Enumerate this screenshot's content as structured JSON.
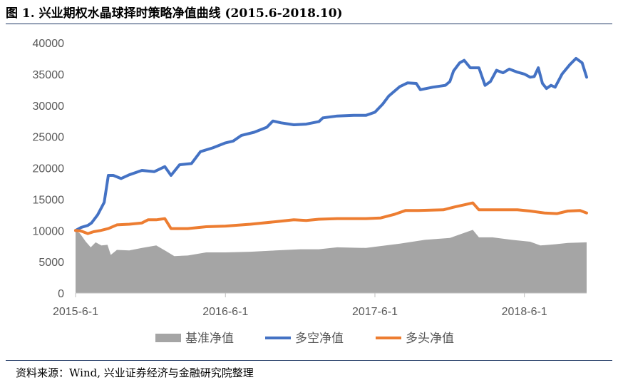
{
  "header": {
    "figure_title": "图 1. 兴业期权水晶球择时策略净值曲线 (2015.6-2018.10)"
  },
  "footer": {
    "source": "资料来源：Wind, 兴业证券经济与金融研究院整理"
  },
  "colors": {
    "benchmark": "#a5a5a5",
    "long_short": "#4472c4",
    "long_only": "#ed7d31",
    "axis": "#bfbfbf",
    "text": "#595959"
  },
  "chart_data": {
    "type": "line",
    "legend_position": "bottom",
    "grid": false,
    "ylim": [
      0,
      40000
    ],
    "yticks": [
      "0",
      "5000",
      "10000",
      "15000",
      "20000",
      "25000",
      "30000",
      "35000",
      "40000"
    ],
    "xticks": [
      "2015-6-1",
      "2016-6-1",
      "2017-6-1",
      "2018-6-1"
    ],
    "xlim": [
      "2015-6-1",
      "2018-10-31"
    ],
    "series": [
      {
        "name": "基准净值",
        "style": "area",
        "points": [
          [
            "2015-06-01",
            10000
          ],
          [
            "2015-06-12",
            9500
          ],
          [
            "2015-06-26",
            8200
          ],
          [
            "2015-07-08",
            7300
          ],
          [
            "2015-07-20",
            8100
          ],
          [
            "2015-08-03",
            7600
          ],
          [
            "2015-08-18",
            7700
          ],
          [
            "2015-08-26",
            6100
          ],
          [
            "2015-09-10",
            6900
          ],
          [
            "2015-10-10",
            6800
          ],
          [
            "2015-11-10",
            7200
          ],
          [
            "2015-12-15",
            7600
          ],
          [
            "2016-01-08",
            6700
          ],
          [
            "2016-01-28",
            5900
          ],
          [
            "2016-03-01",
            6000
          ],
          [
            "2016-04-15",
            6500
          ],
          [
            "2016-06-01",
            6500
          ],
          [
            "2016-08-01",
            6600
          ],
          [
            "2016-10-01",
            6800
          ],
          [
            "2016-12-01",
            7000
          ],
          [
            "2017-01-15",
            7000
          ],
          [
            "2017-03-01",
            7300
          ],
          [
            "2017-05-10",
            7200
          ],
          [
            "2017-06-01",
            7400
          ],
          [
            "2017-08-01",
            7900
          ],
          [
            "2017-10-01",
            8500
          ],
          [
            "2017-12-01",
            8800
          ],
          [
            "2018-01-26",
            10100
          ],
          [
            "2018-02-10",
            8900
          ],
          [
            "2018-03-15",
            8900
          ],
          [
            "2018-05-01",
            8500
          ],
          [
            "2018-06-15",
            8200
          ],
          [
            "2018-07-10",
            7600
          ],
          [
            "2018-08-15",
            7800
          ],
          [
            "2018-09-15",
            8000
          ],
          [
            "2018-10-31",
            8100
          ]
        ]
      },
      {
        "name": "多空净值",
        "style": "line",
        "points": [
          [
            "2015-06-01",
            10000
          ],
          [
            "2015-06-15",
            10500
          ],
          [
            "2015-07-01",
            10800
          ],
          [
            "2015-07-10",
            11200
          ],
          [
            "2015-07-25",
            12500
          ],
          [
            "2015-08-10",
            14500
          ],
          [
            "2015-08-20",
            18800
          ],
          [
            "2015-09-01",
            18800
          ],
          [
            "2015-09-20",
            18300
          ],
          [
            "2015-10-10",
            18900
          ],
          [
            "2015-11-10",
            19600
          ],
          [
            "2015-12-10",
            19400
          ],
          [
            "2016-01-05",
            20200
          ],
          [
            "2016-01-20",
            18800
          ],
          [
            "2016-02-10",
            20500
          ],
          [
            "2016-03-10",
            20700
          ],
          [
            "2016-04-01",
            22600
          ],
          [
            "2016-05-01",
            23200
          ],
          [
            "2016-06-01",
            24000
          ],
          [
            "2016-06-20",
            24300
          ],
          [
            "2016-07-10",
            25200
          ],
          [
            "2016-08-10",
            25700
          ],
          [
            "2016-09-10",
            26500
          ],
          [
            "2016-09-25",
            27500
          ],
          [
            "2016-10-15",
            27200
          ],
          [
            "2016-11-15",
            26900
          ],
          [
            "2016-12-15",
            27000
          ],
          [
            "2017-01-15",
            27400
          ],
          [
            "2017-01-25",
            28000
          ],
          [
            "2017-03-01",
            28300
          ],
          [
            "2017-04-10",
            28400
          ],
          [
            "2017-05-10",
            28400
          ],
          [
            "2017-06-01",
            28900
          ],
          [
            "2017-06-20",
            30200
          ],
          [
            "2017-07-05",
            31500
          ],
          [
            "2017-08-01",
            33000
          ],
          [
            "2017-08-20",
            33600
          ],
          [
            "2017-09-10",
            33500
          ],
          [
            "2017-09-20",
            32500
          ],
          [
            "2017-10-20",
            32900
          ],
          [
            "2017-11-20",
            33200
          ],
          [
            "2017-12-01",
            33800
          ],
          [
            "2017-12-10",
            35500
          ],
          [
            "2017-12-25",
            36800
          ],
          [
            "2018-01-05",
            37200
          ],
          [
            "2018-01-20",
            36000
          ],
          [
            "2018-02-10",
            36000
          ],
          [
            "2018-02-25",
            33200
          ],
          [
            "2018-03-10",
            33800
          ],
          [
            "2018-03-25",
            35600
          ],
          [
            "2018-04-10",
            35200
          ],
          [
            "2018-04-25",
            35800
          ],
          [
            "2018-05-15",
            35300
          ],
          [
            "2018-06-01",
            35000
          ],
          [
            "2018-06-15",
            34500
          ],
          [
            "2018-06-25",
            34600
          ],
          [
            "2018-07-05",
            36000
          ],
          [
            "2018-07-15",
            33500
          ],
          [
            "2018-07-25",
            32700
          ],
          [
            "2018-08-05",
            33200
          ],
          [
            "2018-08-15",
            32900
          ],
          [
            "2018-09-01",
            35000
          ],
          [
            "2018-09-20",
            36500
          ],
          [
            "2018-10-05",
            37500
          ],
          [
            "2018-10-20",
            36800
          ],
          [
            "2018-10-31",
            34500
          ]
        ]
      },
      {
        "name": "多头净值",
        "style": "line",
        "points": [
          [
            "2015-06-01",
            10000
          ],
          [
            "2015-06-15",
            9900
          ],
          [
            "2015-07-01",
            9500
          ],
          [
            "2015-07-15",
            9800
          ],
          [
            "2015-08-01",
            10000
          ],
          [
            "2015-08-20",
            10300
          ],
          [
            "2015-09-10",
            10900
          ],
          [
            "2015-10-10",
            11000
          ],
          [
            "2015-11-10",
            11200
          ],
          [
            "2015-11-25",
            11700
          ],
          [
            "2015-12-15",
            11700
          ],
          [
            "2016-01-05",
            11900
          ],
          [
            "2016-01-20",
            10300
          ],
          [
            "2016-03-01",
            10300
          ],
          [
            "2016-04-15",
            10600
          ],
          [
            "2016-06-01",
            10700
          ],
          [
            "2016-08-01",
            11000
          ],
          [
            "2016-10-01",
            11400
          ],
          [
            "2016-11-15",
            11700
          ],
          [
            "2016-12-15",
            11600
          ],
          [
            "2017-01-15",
            11800
          ],
          [
            "2017-03-01",
            11900
          ],
          [
            "2017-05-10",
            11900
          ],
          [
            "2017-06-15",
            12000
          ],
          [
            "2017-07-20",
            12600
          ],
          [
            "2017-08-15",
            13200
          ],
          [
            "2017-09-15",
            13200
          ],
          [
            "2017-11-15",
            13300
          ],
          [
            "2017-12-15",
            13800
          ],
          [
            "2018-01-05",
            14100
          ],
          [
            "2018-01-26",
            14400
          ],
          [
            "2018-02-10",
            13300
          ],
          [
            "2018-03-15",
            13300
          ],
          [
            "2018-05-15",
            13300
          ],
          [
            "2018-06-15",
            13100
          ],
          [
            "2018-07-20",
            12800
          ],
          [
            "2018-08-20",
            12700
          ],
          [
            "2018-09-15",
            13100
          ],
          [
            "2018-10-15",
            13200
          ],
          [
            "2018-10-31",
            12800
          ]
        ]
      }
    ]
  }
}
